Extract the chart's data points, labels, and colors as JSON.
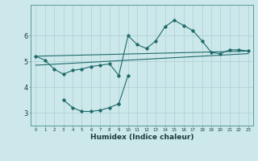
{
  "xlabel": "Humidex (Indice chaleur)",
  "bg_color": "#cde8eb",
  "grid_color": "#aacfd4",
  "line_color": "#1e6b6b",
  "xlim": [
    -0.5,
    23.5
  ],
  "ylim": [
    2.5,
    7.2
  ],
  "yticks": [
    3,
    4,
    5,
    6
  ],
  "xticks": [
    0,
    1,
    2,
    3,
    4,
    5,
    6,
    7,
    8,
    9,
    10,
    11,
    12,
    13,
    14,
    15,
    16,
    17,
    18,
    19,
    20,
    21,
    22,
    23
  ],
  "line1_x": [
    0,
    1,
    2,
    3,
    4,
    5,
    6,
    7,
    8,
    9,
    10,
    11,
    12,
    13,
    14,
    15,
    16,
    17,
    18,
    19,
    20,
    21,
    22,
    23
  ],
  "line1_y": [
    5.2,
    5.05,
    4.7,
    4.5,
    4.65,
    4.7,
    4.8,
    4.85,
    4.9,
    4.45,
    6.0,
    5.65,
    5.5,
    5.8,
    6.35,
    6.6,
    6.4,
    6.2,
    5.8,
    5.35,
    5.3,
    5.45,
    5.45,
    5.4
  ],
  "line2_x": [
    0,
    23
  ],
  "line2_y": [
    5.2,
    5.4
  ],
  "line3_x": [
    0,
    23
  ],
  "line3_y": [
    4.85,
    5.3
  ],
  "line4_x": [
    3,
    4,
    5,
    6,
    7,
    8,
    9
  ],
  "line4_y": [
    3.5,
    3.2,
    3.05,
    3.05,
    3.1,
    3.2,
    3.35
  ],
  "line5_x": [
    9,
    10
  ],
  "line5_y": [
    3.35,
    4.45
  ]
}
